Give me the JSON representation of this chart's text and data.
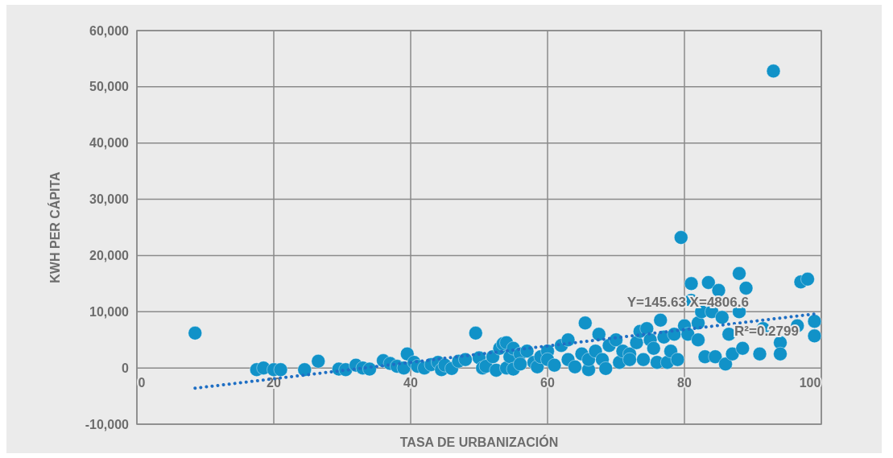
{
  "chart_data": {
    "type": "scatter",
    "xlabel": "TASA DE URBANIZACIÓN",
    "ylabel": "KWH PER CÁPITA",
    "xlim": [
      0,
      100
    ],
    "xticks": [
      0,
      20,
      40,
      60,
      80,
      100
    ],
    "ylim": [
      -10000,
      60000
    ],
    "yticks": [
      {
        "value": -10000,
        "label": "-10,000"
      },
      {
        "value": 0,
        "label": "0"
      },
      {
        "value": 10000,
        "label": "10,000"
      },
      {
        "value": 20000,
        "label": "20,000"
      },
      {
        "value": 30000,
        "label": "30,000"
      },
      {
        "value": 40000,
        "label": "40,000"
      },
      {
        "value": 50000,
        "label": "50,000"
      },
      {
        "value": 60000,
        "label": "60,000"
      }
    ],
    "grid": true,
    "marker": "circle",
    "series": [
      {
        "color": "#1192c8",
        "x": [
          8.5,
          17.5,
          18.5,
          20,
          21,
          24.5,
          26.5,
          29.5,
          30.5,
          32,
          33,
          34,
          36,
          37,
          38,
          39,
          39.5,
          40.5,
          41,
          42,
          43,
          44,
          44.5,
          45,
          46,
          47,
          48,
          49.5,
          50,
          50.5,
          51,
          52,
          52.5,
          53,
          53.5,
          54,
          54,
          54.5,
          55,
          55,
          56,
          56,
          57,
          58,
          58.5,
          59,
          60,
          60,
          61,
          62,
          63,
          63,
          64,
          65,
          65.5,
          66,
          66,
          67,
          67.5,
          68,
          68.5,
          69,
          70,
          70.5,
          71,
          72,
          72,
          73,
          73.5,
          74,
          74.5,
          75,
          75.5,
          76,
          76.5,
          77,
          77.5,
          78,
          78.5,
          79,
          79.5,
          80,
          80.5,
          81,
          81,
          82,
          82,
          82.5,
          83,
          83.5,
          84,
          84.5,
          85,
          85.5,
          86,
          86.5,
          87,
          88,
          88,
          88.5,
          89,
          91,
          91.5,
          93,
          94,
          94,
          96.5,
          97,
          98,
          99,
          99
        ],
        "values": [
          6200,
          -300,
          0,
          -300,
          -300,
          -300,
          1200,
          -200,
          -300,
          500,
          0,
          -200,
          1300,
          800,
          300,
          0,
          2500,
          1000,
          300,
          0,
          600,
          1000,
          -300,
          500,
          -100,
          1200,
          1500,
          6200,
          1800,
          0,
          300,
          2000,
          -400,
          3500,
          4300,
          4500,
          0,
          2000,
          3500,
          -200,
          2500,
          700,
          3000,
          1000,
          200,
          2000,
          3000,
          1500,
          500,
          4000,
          5000,
          1500,
          200,
          2500,
          8000,
          -300,
          1500,
          3000,
          6000,
          1500,
          -100,
          4000,
          5000,
          1000,
          3000,
          2500,
          1500,
          4500,
          6500,
          1500,
          7000,
          5000,
          3500,
          1000,
          8500,
          5500,
          1000,
          3000,
          6000,
          1500,
          23200,
          7500,
          6000,
          15000,
          12000,
          5000,
          8000,
          10000,
          2000,
          15200,
          10000,
          2000,
          13800,
          9000,
          700,
          6000,
          2500,
          16800,
          10000,
          3500,
          14200,
          2500,
          7000,
          52800,
          4500,
          2500,
          7500,
          15300,
          15800,
          8300,
          5700
        ]
      },
      {
        "type": "line",
        "color": "#1f6fc4",
        "line_style": "dotted",
        "marker": "none",
        "x": [
          8.5,
          99
        ],
        "values": [
          -3600,
          9600
        ]
      }
    ],
    "annotations": [
      {
        "text": "Y=145.63 X=4806.6",
        "x": 80.5,
        "y": 11700
      },
      {
        "text": "R²=0.2799",
        "x": 92,
        "y": 6600
      }
    ]
  }
}
